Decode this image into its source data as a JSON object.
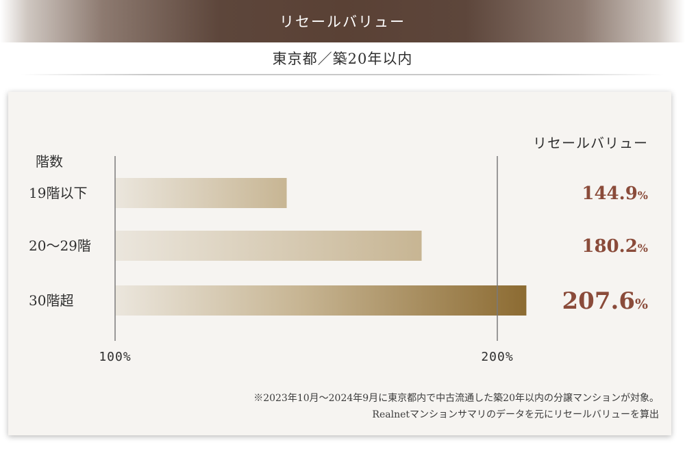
{
  "header": {
    "title": "リセールバリュー",
    "subtitle": "東京都／築20年以内"
  },
  "chart_data": {
    "type": "bar",
    "orientation": "horizontal",
    "category_axis_label": "階数",
    "value_column_label": "リセールバリュー",
    "categories": [
      "19階以下",
      "20〜29階",
      "30階超"
    ],
    "values": [
      144.9,
      180.2,
      207.6
    ],
    "value_labels": [
      "144.9%",
      "180.2%",
      "207.6%"
    ],
    "xlim": [
      100,
      215
    ],
    "reference_lines": [
      100,
      200
    ],
    "tick_labels": [
      "100%",
      "200%"
    ],
    "colors": {
      "bar_light": "#ebe6dd",
      "bar_mid": "#c7b593",
      "bar_dark": "#8c6b32",
      "value_label": "#8a4b3a",
      "reference_line": "#7a7a7a"
    }
  },
  "footnote": {
    "line1": "※2023年10月～2024年9月に東京都内で中古流通した築20年以内の分譲マンションが対象。",
    "line2": "Realnetマンションサマリのデータを元にリセールバリューを算出"
  }
}
